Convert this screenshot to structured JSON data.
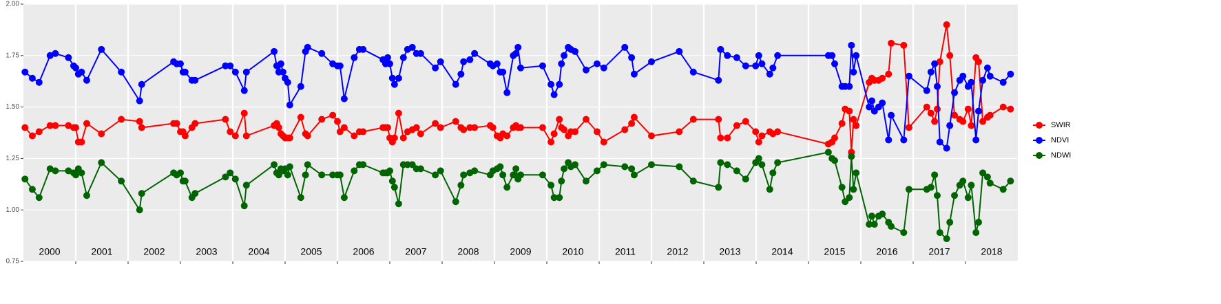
{
  "chart_data": {
    "type": "line",
    "x": [
      2000.03,
      2000.17,
      2000.3,
      2000.51,
      2000.61,
      2000.86,
      2000.96,
      2001.0,
      2001.05,
      2001.11,
      2001.21,
      2001.49,
      2001.87,
      2002.22,
      2002.26,
      2002.87,
      2002.93,
      2003.0,
      2003.05,
      2003.09,
      2003.22,
      2003.28,
      2003.86,
      2003.95,
      2004.05,
      2004.22,
      2004.26,
      2004.79,
      2004.84,
      2004.88,
      2004.92,
      2004.96,
      2005.0,
      2005.05,
      2005.09,
      2005.3,
      2005.39,
      2005.43,
      2005.7,
      2005.91,
      2006.0,
      2006.05,
      2006.13,
      2006.32,
      2006.42,
      2006.49,
      2006.87,
      2006.92,
      2006.96,
      2007.0,
      2007.05,
      2007.09,
      2007.17,
      2007.26,
      2007.34,
      2007.43,
      2007.51,
      2007.59,
      2007.87,
      2007.97,
      2008.26,
      2008.36,
      2008.41,
      2008.53,
      2008.62,
      2008.92,
      2008.97,
      2009.05,
      2009.11,
      2009.16,
      2009.24,
      2009.36,
      2009.41,
      2009.45,
      2009.5,
      2009.92,
      2010.08,
      2010.14,
      2010.24,
      2010.28,
      2010.33,
      2010.41,
      2010.46,
      2010.54,
      2010.75,
      2010.96,
      2011.09,
      2011.49,
      2011.62,
      2011.67,
      2012.0,
      2012.53,
      2012.8,
      2013.28,
      2013.32,
      2013.45,
      2013.63,
      2013.8,
      2013.99,
      2014.05,
      2014.11,
      2014.26,
      2014.32,
      2014.41,
      2015.38,
      2015.45,
      2015.5,
      2015.64,
      2015.7,
      2015.78,
      2015.82,
      2015.86,
      2015.91,
      2016.16,
      2016.21,
      2016.26,
      2016.34,
      2016.41,
      2016.53,
      2016.58,
      2016.82,
      2016.92,
      2017.26,
      2017.34,
      2017.41,
      2017.46,
      2017.51,
      2017.64,
      2017.7,
      2017.79,
      2017.89,
      2017.95,
      2018.05,
      2018.11,
      2018.2,
      2018.25,
      2018.33,
      2018.42,
      2018.47,
      2018.72,
      2018.86
    ],
    "series": [
      {
        "name": "SWIR",
        "color": "#ff0000",
        "values": [
          1.4,
          1.36,
          1.38,
          1.41,
          1.41,
          1.41,
          1.4,
          1.4,
          1.33,
          1.33,
          1.42,
          1.37,
          1.44,
          1.43,
          1.4,
          1.42,
          1.42,
          1.38,
          1.38,
          1.36,
          1.4,
          1.42,
          1.44,
          1.38,
          1.36,
          1.47,
          1.36,
          1.41,
          1.42,
          1.4,
          1.37,
          1.36,
          1.35,
          1.35,
          1.35,
          1.45,
          1.37,
          1.36,
          1.44,
          1.46,
          1.43,
          1.38,
          1.4,
          1.36,
          1.38,
          1.38,
          1.4,
          1.4,
          1.4,
          1.35,
          1.33,
          1.35,
          1.47,
          1.35,
          1.38,
          1.39,
          1.4,
          1.37,
          1.42,
          1.4,
          1.43,
          1.4,
          1.39,
          1.4,
          1.4,
          1.41,
          1.4,
          1.36,
          1.35,
          1.37,
          1.36,
          1.4,
          1.41,
          1.4,
          1.4,
          1.4,
          1.33,
          1.37,
          1.44,
          1.4,
          1.39,
          1.36,
          1.38,
          1.38,
          1.44,
          1.38,
          1.33,
          1.39,
          1.42,
          1.45,
          1.36,
          1.38,
          1.44,
          1.44,
          1.35,
          1.35,
          1.41,
          1.43,
          1.38,
          1.33,
          1.36,
          1.38,
          1.37,
          1.38,
          1.32,
          1.33,
          1.35,
          1.42,
          1.49,
          1.48,
          1.28,
          1.44,
          1.41,
          1.62,
          1.64,
          1.63,
          1.63,
          1.64,
          1.66,
          1.81,
          1.8,
          1.4,
          1.5,
          1.47,
          1.43,
          1.49,
          1.72,
          1.9,
          1.75,
          1.46,
          1.44,
          1.43,
          1.49,
          1.41,
          1.74,
          1.72,
          1.43,
          1.45,
          1.46,
          1.5,
          1.49
        ]
      },
      {
        "name": "NDVI",
        "color": "#0000ff",
        "values": [
          1.67,
          1.64,
          1.62,
          1.75,
          1.76,
          1.74,
          1.7,
          1.69,
          1.66,
          1.67,
          1.63,
          1.78,
          1.67,
          1.53,
          1.61,
          1.72,
          1.71,
          1.71,
          1.67,
          1.67,
          1.63,
          1.63,
          1.7,
          1.7,
          1.67,
          1.58,
          1.67,
          1.77,
          1.7,
          1.67,
          1.71,
          1.67,
          1.64,
          1.62,
          1.51,
          1.6,
          1.77,
          1.79,
          1.76,
          1.71,
          1.7,
          1.7,
          1.54,
          1.74,
          1.78,
          1.78,
          1.73,
          1.71,
          1.74,
          1.71,
          1.64,
          1.61,
          1.64,
          1.74,
          1.78,
          1.79,
          1.76,
          1.76,
          1.69,
          1.72,
          1.61,
          1.66,
          1.72,
          1.73,
          1.76,
          1.71,
          1.7,
          1.71,
          1.67,
          1.67,
          1.57,
          1.75,
          1.76,
          1.79,
          1.69,
          1.7,
          1.61,
          1.56,
          1.61,
          1.71,
          1.75,
          1.79,
          1.78,
          1.77,
          1.68,
          1.71,
          1.69,
          1.79,
          1.74,
          1.66,
          1.72,
          1.77,
          1.67,
          1.63,
          1.78,
          1.75,
          1.74,
          1.7,
          1.7,
          1.75,
          1.71,
          1.66,
          1.69,
          1.75,
          1.75,
          1.75,
          1.71,
          1.6,
          1.6,
          1.6,
          1.8,
          1.67,
          1.75,
          1.5,
          1.53,
          1.48,
          1.5,
          1.52,
          1.34,
          1.46,
          1.34,
          1.65,
          1.58,
          1.67,
          1.71,
          1.6,
          1.33,
          1.3,
          1.41,
          1.57,
          1.63,
          1.65,
          1.6,
          1.62,
          1.34,
          1.48,
          1.63,
          1.69,
          1.65,
          1.62,
          1.66
        ]
      },
      {
        "name": "NDWI",
        "color": "#006400",
        "values": [
          1.15,
          1.1,
          1.06,
          1.2,
          1.19,
          1.19,
          1.18,
          1.17,
          1.2,
          1.18,
          1.07,
          1.23,
          1.14,
          1.0,
          1.08,
          1.18,
          1.17,
          1.18,
          1.14,
          1.14,
          1.06,
          1.08,
          1.16,
          1.18,
          1.15,
          1.02,
          1.12,
          1.22,
          1.18,
          1.17,
          1.2,
          1.19,
          1.2,
          1.17,
          1.21,
          1.06,
          1.17,
          1.22,
          1.17,
          1.17,
          1.17,
          1.17,
          1.06,
          1.19,
          1.22,
          1.22,
          1.18,
          1.18,
          1.18,
          1.19,
          1.14,
          1.11,
          1.03,
          1.22,
          1.22,
          1.22,
          1.2,
          1.2,
          1.17,
          1.19,
          1.04,
          1.12,
          1.17,
          1.18,
          1.19,
          1.17,
          1.19,
          1.2,
          1.21,
          1.17,
          1.11,
          1.17,
          1.2,
          1.15,
          1.17,
          1.17,
          1.12,
          1.06,
          1.06,
          1.14,
          1.2,
          1.23,
          1.21,
          1.22,
          1.14,
          1.19,
          1.22,
          1.21,
          1.2,
          1.17,
          1.22,
          1.21,
          1.14,
          1.11,
          1.23,
          1.22,
          1.19,
          1.15,
          1.23,
          1.25,
          1.22,
          1.1,
          1.18,
          1.23,
          1.28,
          1.25,
          1.24,
          1.11,
          1.04,
          1.06,
          1.26,
          1.1,
          1.18,
          0.93,
          0.97,
          0.93,
          0.97,
          0.98,
          0.94,
          0.92,
          0.89,
          1.1,
          1.1,
          1.11,
          1.17,
          1.07,
          0.89,
          0.86,
          0.94,
          1.07,
          1.12,
          1.14,
          1.06,
          1.12,
          0.89,
          0.94,
          1.18,
          1.16,
          1.13,
          1.1,
          1.14
        ]
      }
    ],
    "xlim": [
      2000,
      2019
    ],
    "xgrid": [
      2001,
      2002,
      2003,
      2004,
      2005,
      2006,
      2007,
      2008,
      2009,
      2010,
      2011,
      2012,
      2013,
      2014,
      2015,
      2016,
      2017,
      2018
    ],
    "xticks": [
      {
        "value": 2000.5,
        "label": "2000"
      },
      {
        "value": 2001.5,
        "label": "2001"
      },
      {
        "value": 2002.5,
        "label": "2002"
      },
      {
        "value": 2003.5,
        "label": "2003"
      },
      {
        "value": 2004.5,
        "label": "2004"
      },
      {
        "value": 2005.5,
        "label": "2005"
      },
      {
        "value": 2006.5,
        "label": "2006"
      },
      {
        "value": 2007.5,
        "label": "2007"
      },
      {
        "value": 2008.5,
        "label": "2008"
      },
      {
        "value": 2009.5,
        "label": "2009"
      },
      {
        "value": 2010.5,
        "label": "2010"
      },
      {
        "value": 2011.5,
        "label": "2011"
      },
      {
        "value": 2012.5,
        "label": "2012"
      },
      {
        "value": 2013.5,
        "label": "2013"
      },
      {
        "value": 2014.5,
        "label": "2014"
      },
      {
        "value": 2015.5,
        "label": "2015"
      },
      {
        "value": 2016.5,
        "label": "2016"
      },
      {
        "value": 2017.5,
        "label": "2017"
      },
      {
        "value": 2018.5,
        "label": "2018"
      }
    ],
    "ylim": [
      0.75,
      2
    ],
    "yticks": [
      0.75,
      {
        "value": 1,
        "label": "1.00"
      },
      1.25,
      {
        "value": 1.5,
        "label": "1.50"
      },
      1.75,
      {
        "value": 2,
        "label": "2.00"
      }
    ],
    "grid": true,
    "legend": "right"
  }
}
